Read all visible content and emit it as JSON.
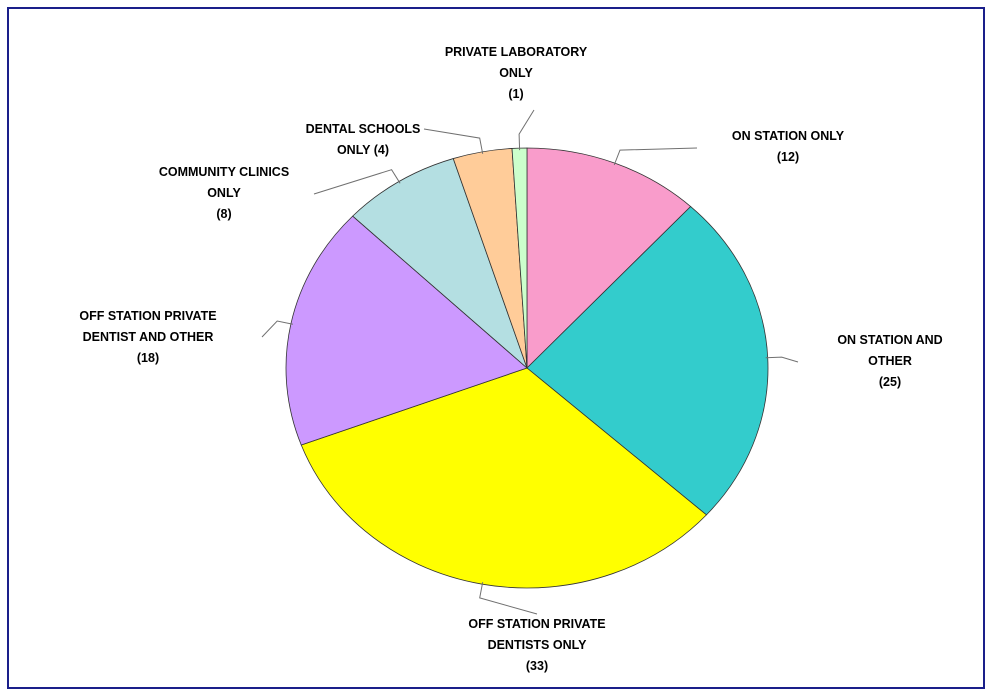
{
  "colors": {
    "frame": "#1a1f8a",
    "leader": "#707070",
    "edge": "#333333"
  },
  "chart_data": {
    "type": "pie",
    "title": "",
    "start_angle_deg": 0,
    "direction": "clockwise",
    "slices": [
      {
        "label": [
          "ON STATION ONLY",
          "(12)"
        ],
        "value": 12,
        "color": "#f99ccb"
      },
      {
        "label": [
          "ON STATION AND",
          "OTHER",
          "(25)"
        ],
        "value": 25,
        "color": "#33cccc"
      },
      {
        "label": [
          "OFF STATION PRIVATE",
          "DENTISTS ONLY",
          "(33)"
        ],
        "value": 33,
        "color": "#ffff00"
      },
      {
        "label": [
          "OFF STATION PRIVATE",
          "DENTIST AND OTHER",
          "(18)"
        ],
        "value": 18,
        "color": "#cc99ff"
      },
      {
        "label": [
          "COMMUNITY CLINICS",
          "ONLY",
          "(8)"
        ],
        "value": 8,
        "color": "#b4dfe2"
      },
      {
        "label": [
          "DENTAL SCHOOLS",
          "ONLY (4)"
        ],
        "value": 4,
        "color": "#ffcc99"
      },
      {
        "label": [
          "PRIVATE LABORATORY",
          "ONLY",
          "(1)"
        ],
        "value": 1,
        "color": "#ccffcc"
      }
    ]
  }
}
